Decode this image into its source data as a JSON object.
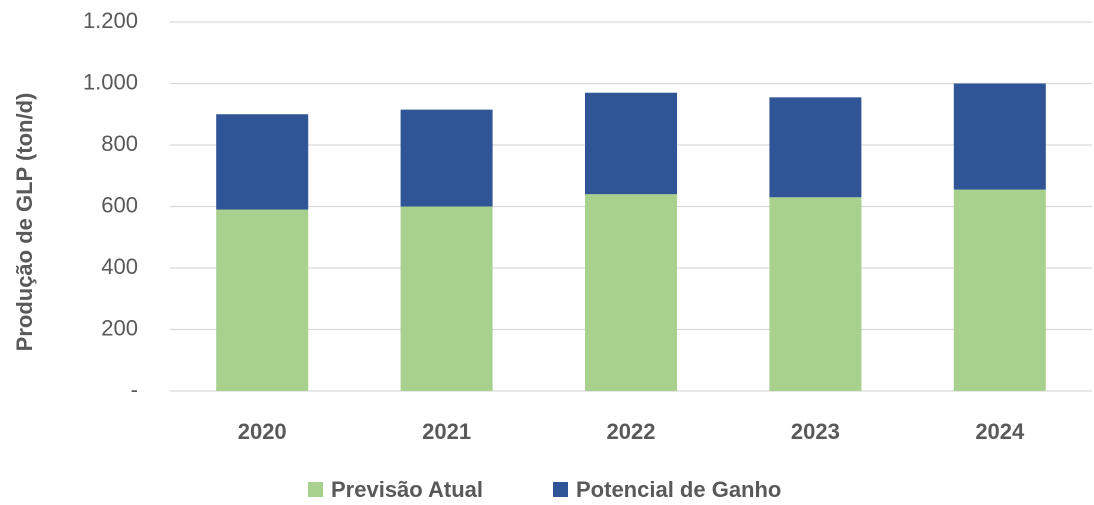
{
  "chart_data": {
    "type": "stacked_bar",
    "y_label": "Produção de GLP (ton/d)",
    "categories": [
      "2020",
      "2021",
      "2022",
      "2023",
      "2024"
    ],
    "series": [
      {
        "name": "Previsão Atual",
        "color": "#a9d18e",
        "values": [
          590,
          600,
          640,
          630,
          655
        ]
      },
      {
        "name": "Potencial de Ganho",
        "color": "#2f5597",
        "values": [
          310,
          315,
          330,
          325,
          345
        ]
      }
    ],
    "ylim": [
      0,
      1200
    ],
    "yticks": [
      {
        "value": 0,
        "label": "-"
      },
      200,
      400,
      600,
      800,
      {
        "value": 1000,
        "label": "1.000"
      },
      {
        "value": 1200,
        "label": "1.200"
      }
    ],
    "grid": true,
    "legend": "bottom"
  }
}
